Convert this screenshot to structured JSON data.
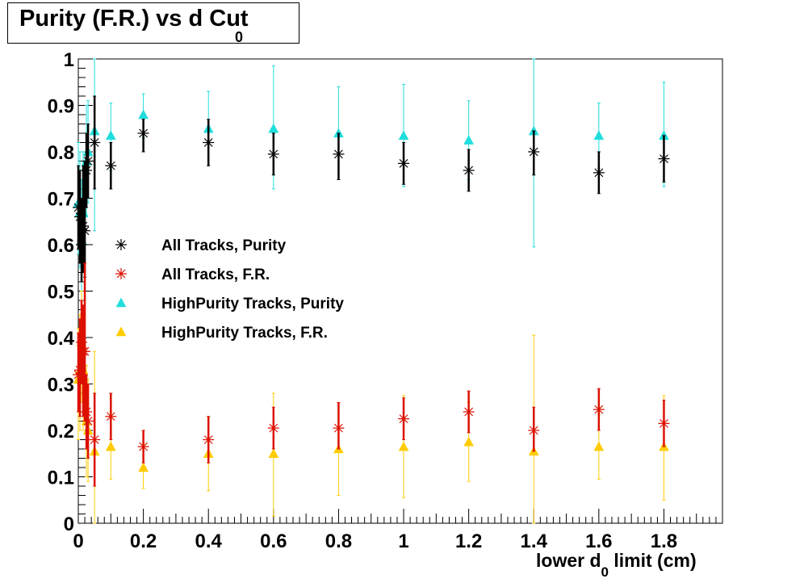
{
  "title": {
    "main": "Purity (F.R.) vs d Cut",
    "subscript": "0"
  },
  "chart_data": {
    "type": "scatter",
    "title": "Purity (F.R.) vs d0 Cut",
    "xlabel": "lower d limit (cm)",
    "xlabel_subscript": "0",
    "ylabel": "",
    "xlim": [
      0,
      1.98
    ],
    "ylim": [
      0,
      1
    ],
    "x_tick_labels": [
      "0",
      "0.2",
      "0.4",
      "0.6",
      "0.8",
      "1",
      "1.2",
      "1.4",
      "1.6",
      "1.8"
    ],
    "x_tick_values": [
      0,
      0.2,
      0.4,
      0.6,
      0.8,
      1.0,
      1.2,
      1.4,
      1.6,
      1.8
    ],
    "y_tick_labels": [
      "0",
      "0.1",
      "0.2",
      "0.3",
      "0.4",
      "0.5",
      "0.6",
      "0.7",
      "0.8",
      "0.9",
      "1"
    ],
    "y_tick_values": [
      0,
      0.1,
      0.2,
      0.3,
      0.4,
      0.5,
      0.6,
      0.7,
      0.8,
      0.9,
      1.0
    ],
    "grid": false,
    "legend_position": "middle-left",
    "series": [
      {
        "name": "All Tracks, Purity",
        "marker": "star",
        "color": "#000000",
        "points": [
          {
            "x": 0.0,
            "y": 0.68,
            "lo": 0.59,
            "hi": 0.77
          },
          {
            "x": 0.005,
            "y": 0.66,
            "lo": 0.56,
            "hi": 0.76
          },
          {
            "x": 0.01,
            "y": 0.6,
            "lo": 0.52,
            "hi": 0.7
          },
          {
            "x": 0.015,
            "y": 0.64,
            "lo": 0.54,
            "hi": 0.77
          },
          {
            "x": 0.02,
            "y": 0.63,
            "lo": 0.53,
            "hi": 0.78
          },
          {
            "x": 0.025,
            "y": 0.76,
            "lo": 0.68,
            "hi": 0.84
          },
          {
            "x": 0.03,
            "y": 0.78,
            "lo": 0.7,
            "hi": 0.86
          },
          {
            "x": 0.05,
            "y": 0.82,
            "lo": 0.72,
            "hi": 0.92
          },
          {
            "x": 0.1,
            "y": 0.77,
            "lo": 0.72,
            "hi": 0.82
          },
          {
            "x": 0.2,
            "y": 0.84,
            "lo": 0.8,
            "hi": 0.87
          },
          {
            "x": 0.4,
            "y": 0.82,
            "lo": 0.77,
            "hi": 0.87
          },
          {
            "x": 0.6,
            "y": 0.795,
            "lo": 0.75,
            "hi": 0.84
          },
          {
            "x": 0.8,
            "y": 0.795,
            "lo": 0.74,
            "hi": 0.84
          },
          {
            "x": 1.0,
            "y": 0.775,
            "lo": 0.73,
            "hi": 0.82
          },
          {
            "x": 1.2,
            "y": 0.76,
            "lo": 0.715,
            "hi": 0.805
          },
          {
            "x": 1.4,
            "y": 0.8,
            "lo": 0.75,
            "hi": 0.845
          },
          {
            "x": 1.6,
            "y": 0.755,
            "lo": 0.71,
            "hi": 0.8
          },
          {
            "x": 1.8,
            "y": 0.785,
            "lo": 0.735,
            "hi": 0.835
          }
        ]
      },
      {
        "name": "All Tracks, F.R.",
        "marker": "star",
        "color": "#dd1100",
        "points": [
          {
            "x": 0.0,
            "y": 0.32,
            "lo": 0.24,
            "hi": 0.41
          },
          {
            "x": 0.005,
            "y": 0.33,
            "lo": 0.23,
            "hi": 0.44
          },
          {
            "x": 0.01,
            "y": 0.39,
            "lo": 0.3,
            "hi": 0.48
          },
          {
            "x": 0.015,
            "y": 0.37,
            "lo": 0.23,
            "hi": 0.47
          },
          {
            "x": 0.02,
            "y": 0.37,
            "lo": 0.22,
            "hi": 0.56
          },
          {
            "x": 0.025,
            "y": 0.24,
            "lo": 0.16,
            "hi": 0.32
          },
          {
            "x": 0.03,
            "y": 0.22,
            "lo": 0.14,
            "hi": 0.3
          },
          {
            "x": 0.05,
            "y": 0.18,
            "lo": 0.08,
            "hi": 0.28
          },
          {
            "x": 0.1,
            "y": 0.23,
            "lo": 0.18,
            "hi": 0.28
          },
          {
            "x": 0.2,
            "y": 0.165,
            "lo": 0.13,
            "hi": 0.2
          },
          {
            "x": 0.4,
            "y": 0.18,
            "lo": 0.13,
            "hi": 0.23
          },
          {
            "x": 0.6,
            "y": 0.205,
            "lo": 0.16,
            "hi": 0.25
          },
          {
            "x": 0.8,
            "y": 0.205,
            "lo": 0.16,
            "hi": 0.26
          },
          {
            "x": 1.0,
            "y": 0.225,
            "lo": 0.18,
            "hi": 0.27
          },
          {
            "x": 1.2,
            "y": 0.24,
            "lo": 0.195,
            "hi": 0.285
          },
          {
            "x": 1.4,
            "y": 0.2,
            "lo": 0.155,
            "hi": 0.25
          },
          {
            "x": 1.6,
            "y": 0.245,
            "lo": 0.2,
            "hi": 0.29
          },
          {
            "x": 1.8,
            "y": 0.215,
            "lo": 0.165,
            "hi": 0.265
          }
        ]
      },
      {
        "name": "HighPurity Tracks, Purity",
        "marker": "triangle",
        "color": "#22dddd",
        "points": [
          {
            "x": 0.0,
            "y": 0.69,
            "lo": 0.58,
            "hi": 0.82
          },
          {
            "x": 0.005,
            "y": 0.67,
            "lo": 0.55,
            "hi": 0.8
          },
          {
            "x": 0.01,
            "y": 0.61,
            "lo": 0.5,
            "hi": 0.74
          },
          {
            "x": 0.015,
            "y": 0.67,
            "lo": 0.55,
            "hi": 0.8
          },
          {
            "x": 0.025,
            "y": 0.78,
            "lo": 0.66,
            "hi": 0.9
          },
          {
            "x": 0.03,
            "y": 0.8,
            "lo": 0.69,
            "hi": 0.91
          },
          {
            "x": 0.05,
            "y": 0.845,
            "lo": 0.63,
            "hi": 1.0
          },
          {
            "x": 0.1,
            "y": 0.835,
            "lo": 0.76,
            "hi": 0.905
          },
          {
            "x": 0.2,
            "y": 0.88,
            "lo": 0.83,
            "hi": 0.925
          },
          {
            "x": 0.4,
            "y": 0.85,
            "lo": 0.77,
            "hi": 0.93
          },
          {
            "x": 0.6,
            "y": 0.85,
            "lo": 0.72,
            "hi": 0.985
          },
          {
            "x": 0.8,
            "y": 0.84,
            "lo": 0.74,
            "hi": 0.94
          },
          {
            "x": 1.0,
            "y": 0.835,
            "lo": 0.725,
            "hi": 0.945
          },
          {
            "x": 1.2,
            "y": 0.825,
            "lo": 0.74,
            "hi": 0.91
          },
          {
            "x": 1.4,
            "y": 0.845,
            "lo": 0.595,
            "hi": 1.0
          },
          {
            "x": 1.6,
            "y": 0.835,
            "lo": 0.765,
            "hi": 0.905
          },
          {
            "x": 1.8,
            "y": 0.835,
            "lo": 0.725,
            "hi": 0.95
          }
        ]
      },
      {
        "name": "HighPurity Tracks, F.R.",
        "marker": "triangle",
        "color": "#ffcc00",
        "points": [
          {
            "x": 0.0,
            "y": 0.31,
            "lo": 0.18,
            "hi": 0.42
          },
          {
            "x": 0.005,
            "y": 0.33,
            "lo": 0.2,
            "hi": 0.45
          },
          {
            "x": 0.01,
            "y": 0.39,
            "lo": 0.26,
            "hi": 0.5
          },
          {
            "x": 0.015,
            "y": 0.33,
            "lo": 0.2,
            "hi": 0.45
          },
          {
            "x": 0.025,
            "y": 0.22,
            "lo": 0.1,
            "hi": 0.34
          },
          {
            "x": 0.03,
            "y": 0.2,
            "lo": 0.09,
            "hi": 0.31
          },
          {
            "x": 0.05,
            "y": 0.155,
            "lo": 0.0,
            "hi": 0.37
          },
          {
            "x": 0.1,
            "y": 0.165,
            "lo": 0.095,
            "hi": 0.24
          },
          {
            "x": 0.2,
            "y": 0.12,
            "lo": 0.075,
            "hi": 0.17
          },
          {
            "x": 0.4,
            "y": 0.15,
            "lo": 0.07,
            "hi": 0.23
          },
          {
            "x": 0.6,
            "y": 0.15,
            "lo": 0.015,
            "hi": 0.28
          },
          {
            "x": 0.8,
            "y": 0.16,
            "lo": 0.06,
            "hi": 0.26
          },
          {
            "x": 1.0,
            "y": 0.165,
            "lo": 0.055,
            "hi": 0.275
          },
          {
            "x": 1.2,
            "y": 0.175,
            "lo": 0.09,
            "hi": 0.26
          },
          {
            "x": 1.4,
            "y": 0.155,
            "lo": 0.0,
            "hi": 0.405
          },
          {
            "x": 1.6,
            "y": 0.165,
            "lo": 0.095,
            "hi": 0.235
          },
          {
            "x": 1.8,
            "y": 0.165,
            "lo": 0.05,
            "hi": 0.275
          }
        ]
      }
    ]
  }
}
